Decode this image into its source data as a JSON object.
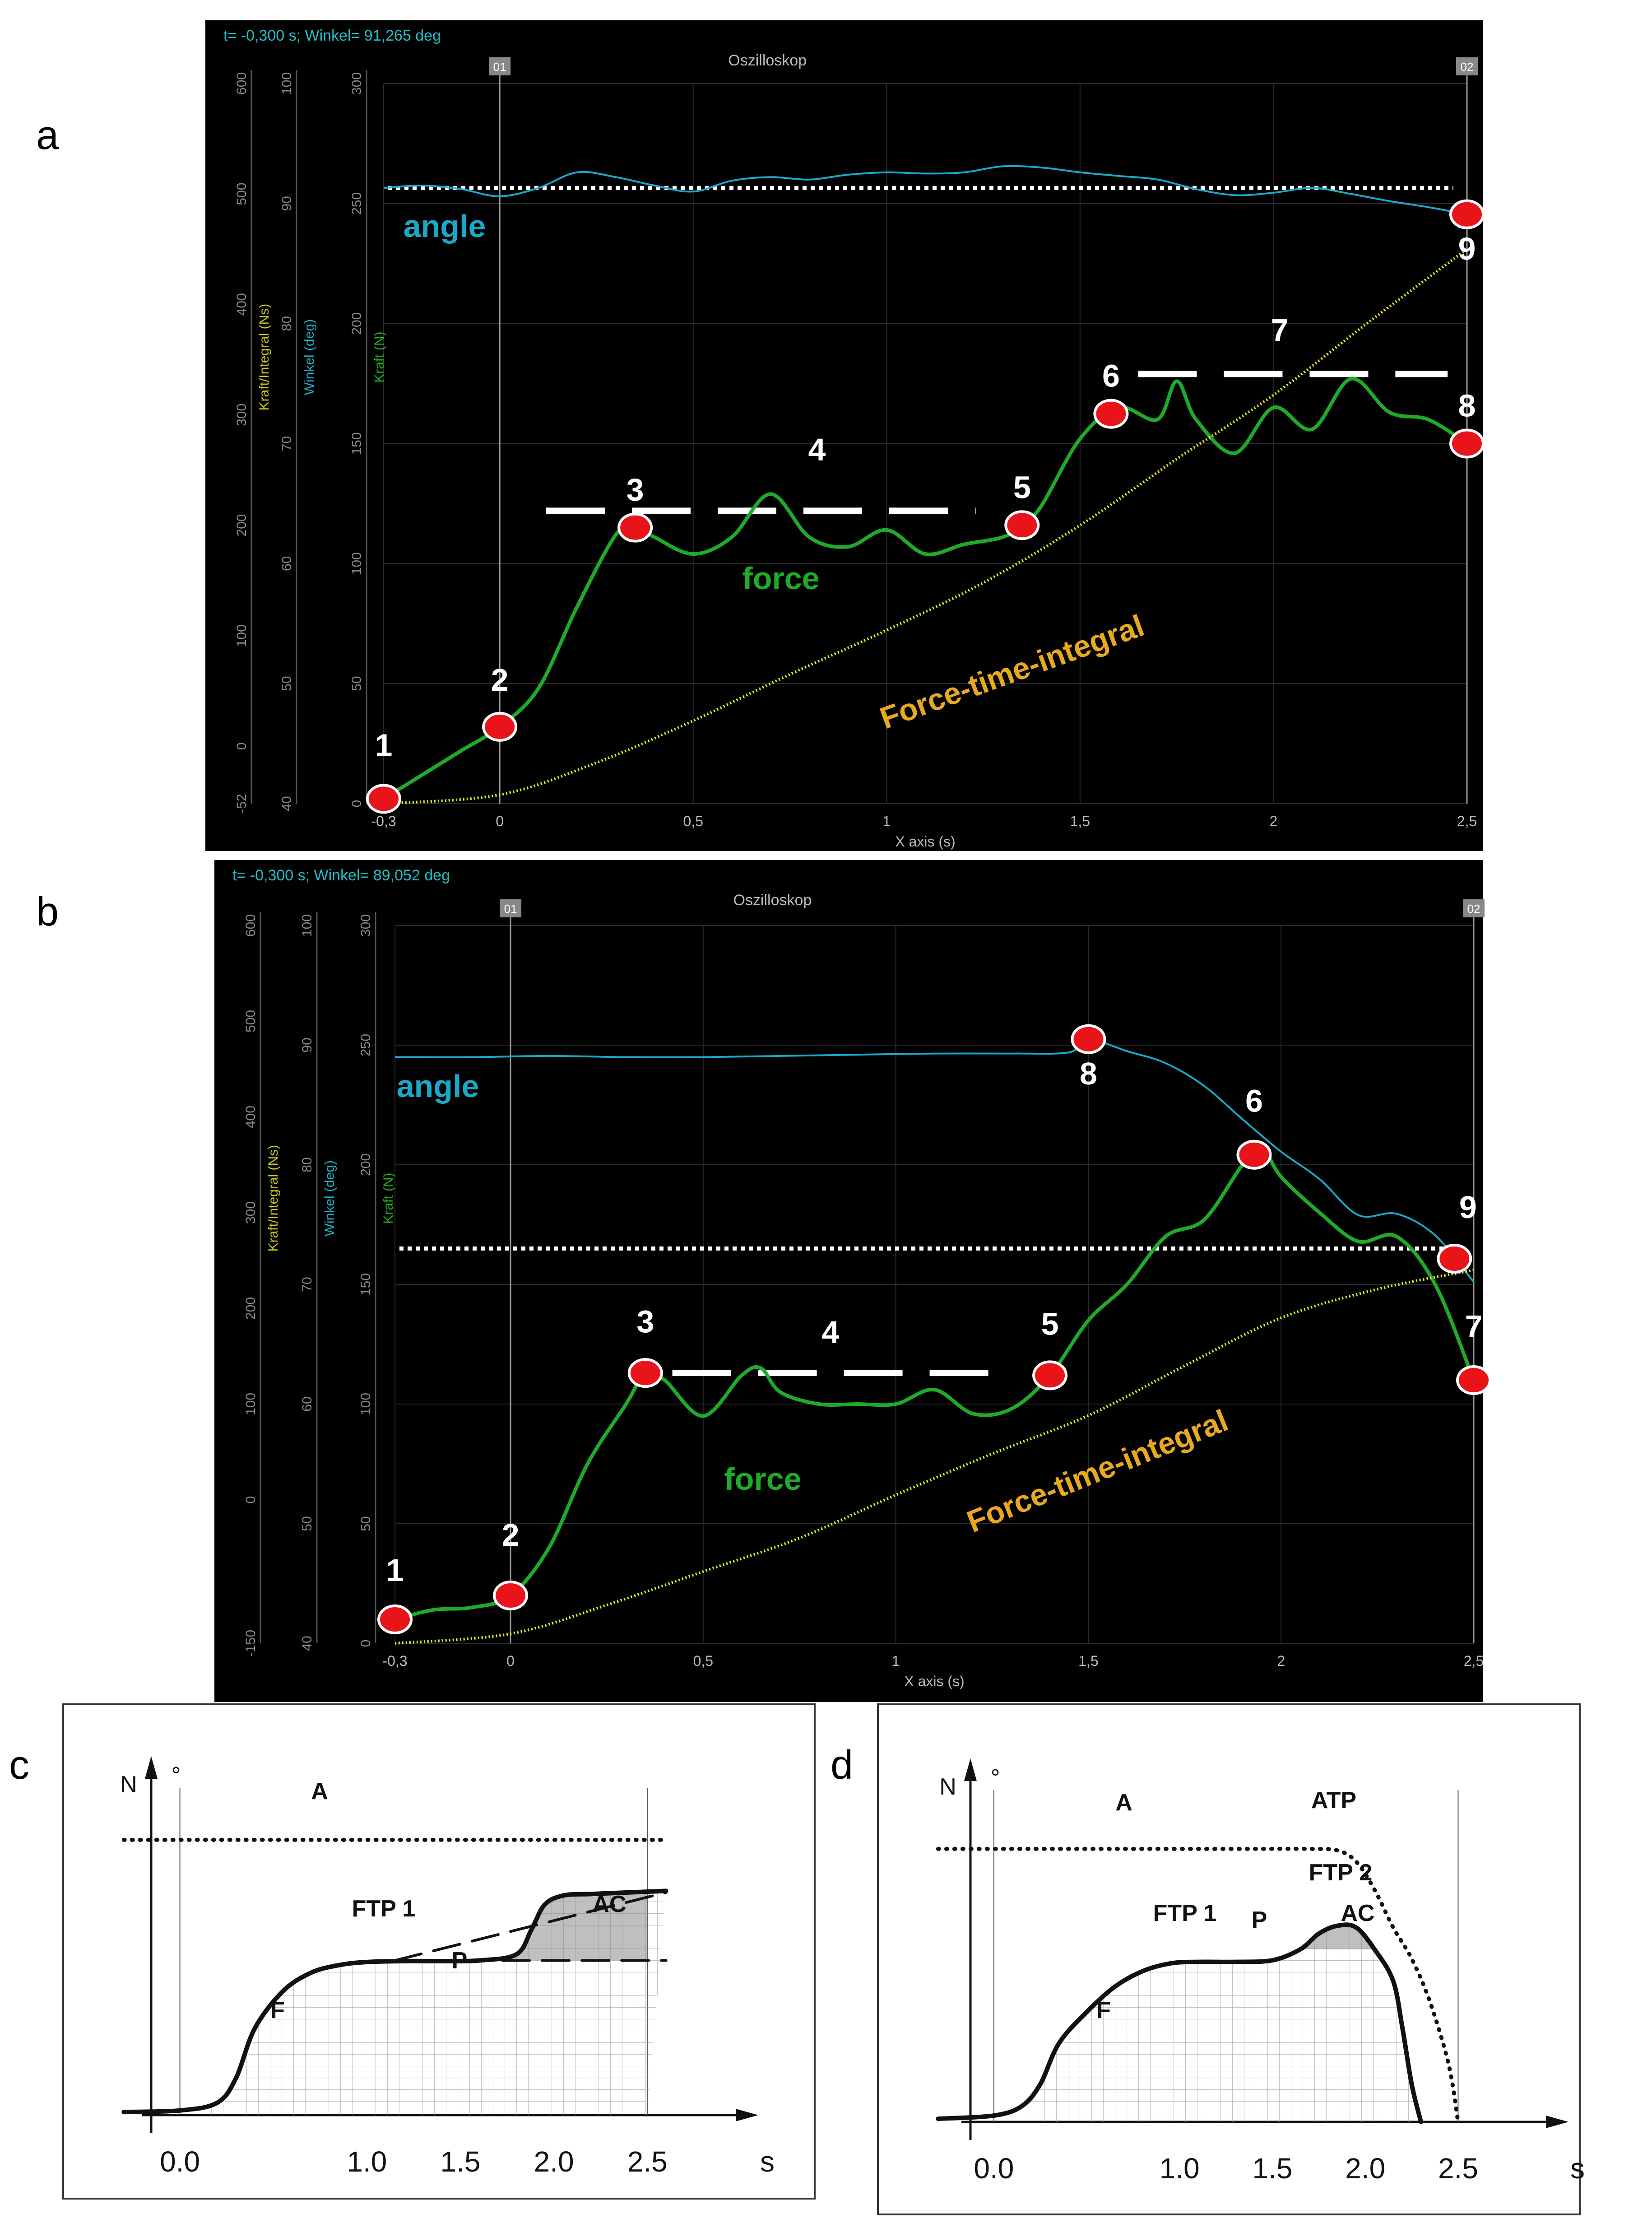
{
  "panel_letters": [
    "a",
    "b",
    "c",
    "d"
  ],
  "chart_data": [
    {
      "panel": "a",
      "type": "line",
      "status_text": "t= -0,300 s; Winkel= 91,265 deg",
      "window_title": "Oszilloskop",
      "cursor_labels": [
        "01",
        "02"
      ],
      "xlabel": "X axis (s)",
      "x_ticks": [
        "-0,3",
        "0",
        "0,5",
        "1",
        "1,5",
        "2",
        "2,5"
      ],
      "x_tick_values": [
        -0.3,
        0,
        0.5,
        1,
        1.5,
        2,
        2.5
      ],
      "xlim": [
        -0.3,
        2.5
      ],
      "axes": [
        {
          "name": "Kraft/Integral (Ns)",
          "ticks": [
            "-52",
            "0",
            "100",
            "200",
            "300",
            "400",
            "500",
            "600"
          ],
          "values": [
            -52,
            0,
            100,
            200,
            300,
            400,
            500,
            600
          ],
          "range": [
            -52,
            600
          ],
          "color": "#c8c820"
        },
        {
          "name": "Winkel (deg)",
          "ticks": [
            "40",
            "50",
            "60",
            "70",
            "80",
            "90",
            "100"
          ],
          "values": [
            40,
            50,
            60,
            70,
            80,
            90,
            100
          ],
          "range": [
            40,
            100
          ],
          "color": "#20b0c8"
        },
        {
          "name": "Kraft (N)",
          "ticks": [
            "0",
            "50",
            "100",
            "150",
            "200",
            "250",
            "300"
          ],
          "values": [
            0,
            50,
            100,
            150,
            200,
            250,
            300
          ],
          "range": [
            0,
            300
          ],
          "color": "#20b020"
        }
      ],
      "series": [
        {
          "name": "angle",
          "color": "#1aa8c8",
          "axis": "Winkel (deg)",
          "x": [
            -0.3,
            -0.2,
            -0.1,
            0.0,
            0.1,
            0.2,
            0.3,
            0.4,
            0.5,
            0.6,
            0.7,
            0.8,
            0.9,
            1.0,
            1.1,
            1.2,
            1.3,
            1.4,
            1.5,
            1.6,
            1.7,
            1.8,
            1.9,
            2.0,
            2.1,
            2.2,
            2.3,
            2.4,
            2.5
          ],
          "y": [
            91.3,
            91.5,
            91.2,
            90.6,
            91.3,
            92.6,
            92.2,
            91.5,
            91.0,
            91.9,
            92.2,
            92.0,
            92.4,
            92.6,
            92.5,
            92.6,
            93.1,
            93.0,
            92.6,
            92.3,
            92.0,
            91.2,
            90.7,
            90.9,
            91.3,
            90.8,
            90.2,
            89.7,
            89.1
          ]
        },
        {
          "name": "force",
          "color": "#1faa2a",
          "axis": "Kraft (N)",
          "x": [
            -0.3,
            -0.2,
            -0.1,
            0.0,
            0.1,
            0.2,
            0.3,
            0.35,
            0.4,
            0.5,
            0.6,
            0.7,
            0.8,
            0.9,
            1.0,
            1.1,
            1.2,
            1.3,
            1.35,
            1.4,
            1.5,
            1.6,
            1.7,
            1.75,
            1.8,
            1.9,
            2.0,
            2.1,
            2.2,
            2.3,
            2.4,
            2.5
          ],
          "y": [
            2,
            12,
            22,
            32,
            48,
            82,
            112,
            115,
            111,
            104,
            111,
            129,
            111,
            107,
            114,
            104,
            108,
            111,
            116,
            124,
            152,
            165,
            160,
            176,
            160,
            146,
            165,
            156,
            177,
            163,
            160,
            150
          ]
        },
        {
          "name": "Force-time-integral",
          "color": "#e8e820",
          "axis": "Kraft/Integral (Ns)",
          "x": [
            -0.3,
            0.0,
            0.25,
            0.5,
            0.75,
            1.0,
            1.25,
            1.5,
            1.75,
            2.0,
            2.25,
            2.5
          ],
          "y": [
            -52,
            -44,
            -15,
            23,
            65,
            105,
            148,
            200,
            260,
            318,
            385,
            450
          ]
        }
      ],
      "reference_line": {
        "axis": "Winkel (deg)",
        "value": 91.3,
        "style": "dotted",
        "color": "#ffffff"
      },
      "plateau_lines": [
        {
          "x": [
            0.2,
            0.45
          ],
          "y": 116,
          "style": "dashed"
        },
        {
          "x": [
            0.2,
            0.45
          ],
          "y": 166,
          "style": "dashed"
        }
      ],
      "markers": [
        {
          "label": "1",
          "series": "force",
          "x": -0.3
        },
        {
          "label": "2",
          "series": "force",
          "x": 0.0
        },
        {
          "label": "3",
          "series": "force",
          "x": 0.35
        },
        {
          "label": "5",
          "series": "force",
          "x": 1.35
        },
        {
          "label": "6",
          "series": "force",
          "x": 1.58
        },
        {
          "label": "8",
          "series": "force",
          "x": 2.5
        },
        {
          "label": "9",
          "series": "angle",
          "x": 2.5
        }
      ],
      "annotations": [
        {
          "text": "angle",
          "color": "#1aa8c8"
        },
        {
          "text": "force",
          "color": "#1faa2a"
        },
        {
          "text": "Force-time-integral",
          "color": "#e8a820"
        },
        {
          "text": "4",
          "color": "#ffffff"
        },
        {
          "text": "7",
          "color": "#ffffff"
        }
      ]
    },
    {
      "panel": "b",
      "type": "line",
      "status_text": "t= -0,300 s; Winkel= 89,052 deg",
      "window_title": "Oszilloskop",
      "cursor_labels": [
        "01",
        "02"
      ],
      "xlabel": "X axis (s)",
      "x_ticks": [
        "-0,3",
        "0",
        "0,5",
        "1",
        "1,5",
        "2",
        "2,5"
      ],
      "x_tick_values": [
        -0.3,
        0,
        0.5,
        1,
        1.5,
        2,
        2.5
      ],
      "xlim": [
        -0.3,
        2.5
      ],
      "axes": [
        {
          "name": "Kraft/Integral (Ns)",
          "ticks": [
            "-150",
            "0",
            "100",
            "200",
            "300",
            "400",
            "500",
            "600"
          ],
          "values": [
            -150,
            0,
            100,
            200,
            300,
            400,
            500,
            600
          ],
          "range": [
            -150,
            600
          ],
          "color": "#c8c820"
        },
        {
          "name": "Winkel (deg)",
          "ticks": [
            "40",
            "50",
            "60",
            "70",
            "80",
            "90",
            "100"
          ],
          "values": [
            40,
            50,
            60,
            70,
            80,
            90,
            100
          ],
          "range": [
            40,
            100
          ],
          "color": "#20b0c8"
        },
        {
          "name": "Kraft (N)",
          "ticks": [
            "0",
            "50",
            "100",
            "150",
            "200",
            "250",
            "300"
          ],
          "values": [
            0,
            50,
            100,
            150,
            200,
            250,
            300
          ],
          "range": [
            0,
            300
          ],
          "color": "#20b020"
        }
      ],
      "series": [
        {
          "name": "angle",
          "color": "#1aa8c8",
          "axis": "Winkel (deg)",
          "x": [
            -0.3,
            -0.1,
            0.1,
            0.3,
            0.5,
            0.7,
            0.9,
            1.1,
            1.3,
            1.45,
            1.5,
            1.6,
            1.7,
            1.8,
            1.9,
            2.0,
            2.1,
            2.2,
            2.3,
            2.4,
            2.5
          ],
          "y": [
            89.0,
            89.0,
            89.1,
            89.0,
            89.0,
            89.1,
            89.2,
            89.3,
            89.3,
            89.4,
            90.5,
            89.5,
            88.5,
            86.6,
            83.8,
            81.1,
            78.8,
            75.8,
            75.9,
            74.1,
            70.2
          ]
        },
        {
          "name": "force",
          "color": "#1faa2a",
          "axis": "Kraft (N)",
          "x": [
            -0.3,
            -0.2,
            -0.1,
            0.0,
            0.1,
            0.2,
            0.3,
            0.35,
            0.4,
            0.5,
            0.6,
            0.65,
            0.7,
            0.8,
            0.9,
            1.0,
            1.1,
            1.2,
            1.3,
            1.4,
            1.5,
            1.6,
            1.7,
            1.8,
            1.9,
            1.95,
            2.0,
            2.1,
            2.2,
            2.3,
            2.4,
            2.5
          ],
          "y": [
            10,
            14,
            15,
            20,
            40,
            75,
            100,
            113,
            110,
            95,
            112,
            115,
            105,
            100,
            100,
            100,
            106,
            96,
            98,
            112,
            135,
            150,
            170,
            177,
            200,
            207,
            195,
            180,
            168,
            170,
            150,
            110
          ]
        },
        {
          "name": "Force-time-integral",
          "color": "#e8e820",
          "axis": "Kraft/Integral (Ns)",
          "x": [
            -0.3,
            0.0,
            0.25,
            0.5,
            0.75,
            1.0,
            1.25,
            1.5,
            1.75,
            2.0,
            2.25,
            2.5
          ],
          "y": [
            -150,
            -140,
            -110,
            -75,
            -40,
            5,
            48,
            88,
            140,
            190,
            220,
            240
          ]
        }
      ],
      "reference_line": {
        "axis": "Winkel (deg)",
        "value": 73.0,
        "style": "dotted",
        "color": "#ffffff"
      },
      "plateau_lines": [
        {
          "x": [
            0.42,
            1.27
          ],
          "y": 113,
          "style": "dashed"
        }
      ],
      "markers": [
        {
          "label": "1",
          "series": "force",
          "x": -0.3
        },
        {
          "label": "2",
          "series": "force",
          "x": 0.0
        },
        {
          "label": "3",
          "series": "force",
          "x": 0.35
        },
        {
          "label": "5",
          "series": "force",
          "x": 1.4
        },
        {
          "label": "6",
          "series": "force",
          "x": 1.93
        },
        {
          "label": "7",
          "series": "force",
          "x": 2.5
        },
        {
          "label": "8",
          "series": "angle",
          "x": 1.5
        },
        {
          "label": "9",
          "series": "angle",
          "x": 2.45
        }
      ],
      "annotations": [
        {
          "text": "angle",
          "color": "#1aa8c8"
        },
        {
          "text": "force",
          "color": "#1faa2a"
        },
        {
          "text": "Force-time-integral",
          "color": "#e8a820"
        },
        {
          "text": "4",
          "color": "#ffffff"
        }
      ]
    },
    {
      "panel": "c",
      "type": "line",
      "y_units": [
        "N",
        "°"
      ],
      "x_units": "s",
      "x_ticks": [
        "0.0",
        "1.0",
        "1.5",
        "2.0",
        "2.5"
      ],
      "x_tick_values": [
        0.0,
        1.0,
        1.5,
        2.0,
        2.5
      ],
      "xlim": [
        -0.6,
        2.9
      ],
      "ylim": [
        0,
        100
      ],
      "series": [
        {
          "name": "",
          "style": "solid",
          "x": [
            -0.3,
            0.0,
            0.2,
            0.3,
            0.4,
            0.55,
            0.7,
            0.85,
            1.0,
            1.2,
            1.4,
            1.6,
            1.8,
            1.88,
            1.95,
            2.05,
            2.2,
            2.4,
            2.6
          ],
          "y": [
            1,
            1.5,
            4,
            12,
            28,
            40,
            46,
            48.5,
            49.5,
            49.8,
            49.8,
            50,
            52,
            60,
            68,
            71,
            71.5,
            72,
            72.5
          ]
        },
        {
          "name": "",
          "style": "dotted",
          "x": [
            -0.3,
            2.6
          ],
          "y": [
            89,
            89
          ]
        },
        {
          "name": "",
          "style": "dashed",
          "x": [
            1.15,
            2.6
          ],
          "y": [
            50,
            72
          ]
        },
        {
          "name": "",
          "style": "dashed",
          "x": [
            1.3,
            2.6
          ],
          "y": [
            50,
            50
          ]
        }
      ],
      "vertical_lines": [
        0.0,
        2.5
      ],
      "annotations": [
        "A",
        "FTP 1",
        "P",
        "F",
        "AC"
      ]
    },
    {
      "panel": "d",
      "type": "line",
      "y_units": [
        "N",
        "°"
      ],
      "x_units": "s",
      "x_ticks": [
        "0.0",
        "1.0",
        "1.5",
        "2.0",
        "2.5"
      ],
      "x_tick_values": [
        0.0,
        1.0,
        1.5,
        2.0,
        2.5
      ],
      "xlim": [
        -0.6,
        2.9
      ],
      "ylim": [
        0,
        100
      ],
      "series": [
        {
          "name": "",
          "style": "solid",
          "x": [
            -0.3,
            0.0,
            0.15,
            0.25,
            0.35,
            0.5,
            0.65,
            0.8,
            0.95,
            1.1,
            1.3,
            1.5,
            1.65,
            1.75,
            1.85,
            1.95,
            2.05,
            2.15,
            2.2,
            2.25,
            2.3
          ],
          "y": [
            1,
            2,
            5,
            12,
            25,
            35,
            43,
            48,
            50.5,
            51,
            51,
            51.5,
            55,
            60,
            62.5,
            62,
            55,
            45,
            30,
            12,
            0
          ]
        },
        {
          "name": "",
          "style": "dotted",
          "x": [
            -0.3,
            0.5,
            1.0,
            1.4,
            1.7,
            1.85,
            1.95,
            2.05,
            2.15,
            2.25,
            2.35,
            2.45,
            2.5
          ],
          "y": [
            87,
            87,
            87,
            87,
            87,
            86.5,
            83,
            74,
            62,
            52,
            38,
            18,
            0
          ]
        }
      ],
      "vertical_lines": [
        0.0,
        2.5
      ],
      "annotations": [
        "A",
        "ATP",
        "FTP 1",
        "P",
        "FTP 2",
        "F",
        "AC"
      ]
    }
  ]
}
